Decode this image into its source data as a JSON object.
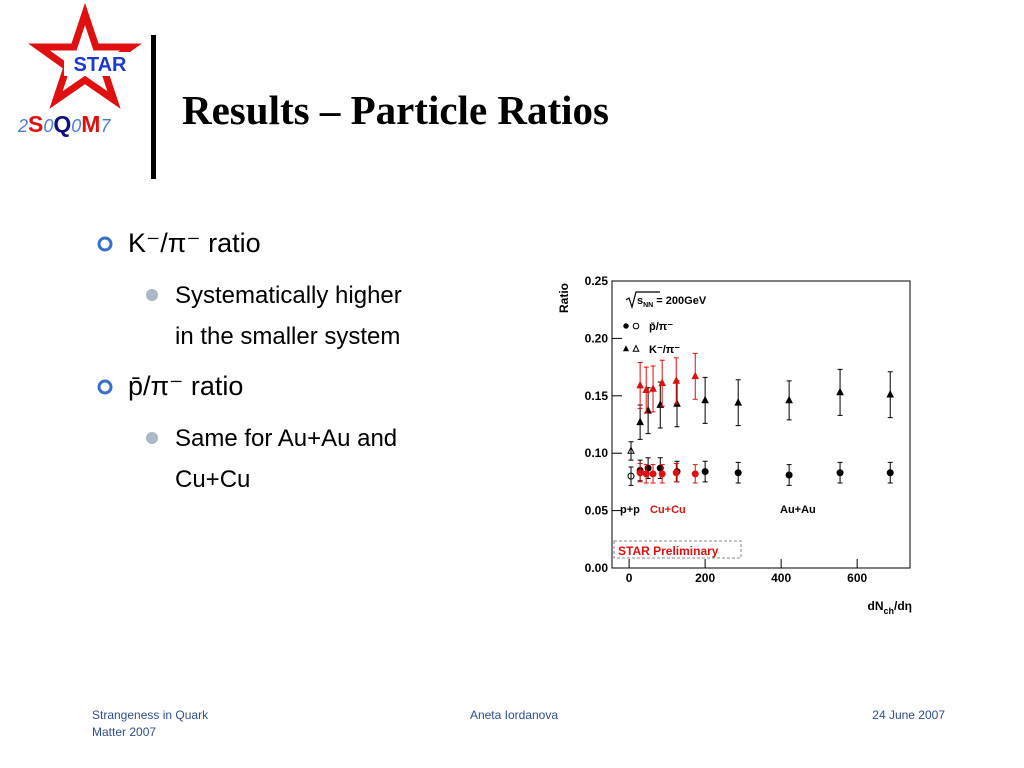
{
  "logo": {
    "badge": "STAR",
    "letters": [
      {
        "text": "2",
        "color": "#4a7fd0",
        "bold": false
      },
      {
        "text": "S",
        "color": "#e01010",
        "bold": true
      },
      {
        "text": "0",
        "color": "#4a7fd0",
        "bold": false
      },
      {
        "text": "Q",
        "color": "#101080",
        "bold": true
      },
      {
        "text": "0",
        "color": "#4a7fd0",
        "bold": false
      },
      {
        "text": "M",
        "color": "#e01010",
        "bold": true
      },
      {
        "text": "7",
        "color": "#4a7fd0",
        "bold": false
      }
    ]
  },
  "header": {
    "title": "Results – Particle Ratios"
  },
  "bullets": [
    {
      "text": "K⁻/π⁻ ratio",
      "sub": [
        "Systematically higher",
        "in the smaller system"
      ]
    },
    {
      "text": "p̄/π⁻ ratio",
      "sub": [
        "Same for Au+Au and",
        "Cu+Cu"
      ]
    }
  ],
  "chart": {
    "type": "scatter",
    "y_label": "Ratio",
    "x_label": {
      "main": "dN",
      "sub": "ch",
      "rest": "/dη"
    },
    "energy": {
      "root": "s",
      "sub": "NN",
      "rest": " = 200GeV"
    },
    "legend": [
      {
        "label": "p̄/π⁻",
        "marker": "circle"
      },
      {
        "label": "K⁻/π⁻",
        "marker": "triangle"
      }
    ],
    "systems": [
      {
        "text": "p+p",
        "color": "#000000"
      },
      {
        "text": "Cu+Cu",
        "color": "#e01010"
      },
      {
        "text": "Au+Au",
        "color": "#000000"
      }
    ],
    "preliminary": "STAR Preliminary",
    "xlim": [
      -45,
      739
    ],
    "ylim": [
      0,
      0.25
    ],
    "xticks": [
      0,
      200,
      400,
      600
    ],
    "yticks": [
      {
        "value": 0,
        "label": "0.00"
      },
      0.05,
      {
        "value": 0.1,
        "label": "0.10"
      },
      0.15,
      {
        "value": 0.2,
        "label": "0.20"
      },
      0.25
    ],
    "series": [
      {
        "marker": "circle",
        "filled": false,
        "color": "#000000",
        "x": [
          5
        ],
        "values": [
          0.08
        ],
        "errors": [
          0.008
        ]
      },
      {
        "marker": "triangle",
        "filled": false,
        "color": "#000000",
        "x": [
          5
        ],
        "values": [
          0.102
        ],
        "errors": [
          0.008
        ]
      },
      {
        "marker": "circle",
        "filled": true,
        "color": "#000000",
        "x": [
          29,
          50,
          82,
          126,
          200,
          287,
          421,
          555,
          687
        ],
        "values": [
          0.085,
          0.087,
          0.087,
          0.084,
          0.084,
          0.083,
          0.081,
          0.083,
          0.083
        ],
        "errors": [
          0.009,
          0.009,
          0.009,
          0.009,
          0.009,
          0.009,
          0.009,
          0.009,
          0.009
        ]
      },
      {
        "marker": "triangle",
        "filled": true,
        "color": "#000000",
        "x": [
          29,
          50,
          82,
          126,
          200,
          287,
          421,
          555,
          687
        ],
        "values": [
          0.127,
          0.137,
          0.142,
          0.143,
          0.146,
          0.144,
          0.146,
          0.153,
          0.151
        ],
        "errors": [
          0.015,
          0.02,
          0.02,
          0.02,
          0.02,
          0.02,
          0.017,
          0.02,
          0.02
        ]
      },
      {
        "marker": "circle",
        "filled": true,
        "color": "#e01010",
        "x": [
          29,
          45,
          63,
          87,
          124,
          174
        ],
        "values": [
          0.083,
          0.082,
          0.082,
          0.082,
          0.083,
          0.082
        ],
        "errors": [
          0.008,
          0.008,
          0.008,
          0.008,
          0.008,
          0.008
        ]
      },
      {
        "marker": "triangle",
        "filled": true,
        "color": "#e01010",
        "x": [
          29,
          45,
          63,
          87,
          124,
          174
        ],
        "values": [
          0.159,
          0.155,
          0.156,
          0.161,
          0.163,
          0.167
        ],
        "errors": [
          0.02,
          0.02,
          0.02,
          0.02,
          0.02,
          0.02
        ]
      }
    ]
  },
  "footer": {
    "left": [
      "Strangeness in Quark",
      "Matter 2007"
    ],
    "center": "Aneta Iordanova",
    "right": "24 June 2007"
  }
}
